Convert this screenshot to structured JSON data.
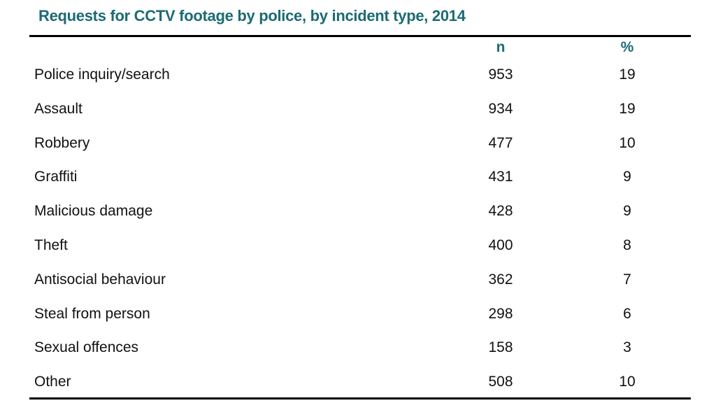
{
  "title": "Requests for CCTV footage by police, by incident type, 2014",
  "columns": {
    "n": "n",
    "pct": "%"
  },
  "rows": [
    {
      "label": "Police inquiry/search",
      "n": "953",
      "pct": "19"
    },
    {
      "label": "Assault",
      "n": "934",
      "pct": "19"
    },
    {
      "label": "Robbery",
      "n": "477",
      "pct": "10"
    },
    {
      "label": "Graffiti",
      "n": "431",
      "pct": "9"
    },
    {
      "label": "Malicious damage",
      "n": "428",
      "pct": "9"
    },
    {
      "label": "Theft",
      "n": "400",
      "pct": "8"
    },
    {
      "label": "Antisocial behaviour",
      "n": "362",
      "pct": "7"
    },
    {
      "label": "Steal from person",
      "n": "298",
      "pct": "6"
    },
    {
      "label": "Sexual offences",
      "n": "158",
      "pct": "3"
    },
    {
      "label": "Other",
      "n": "508",
      "pct": "10"
    }
  ],
  "colors": {
    "accent": "#1b6b73",
    "text": "#111111",
    "rule": "#000000"
  }
}
